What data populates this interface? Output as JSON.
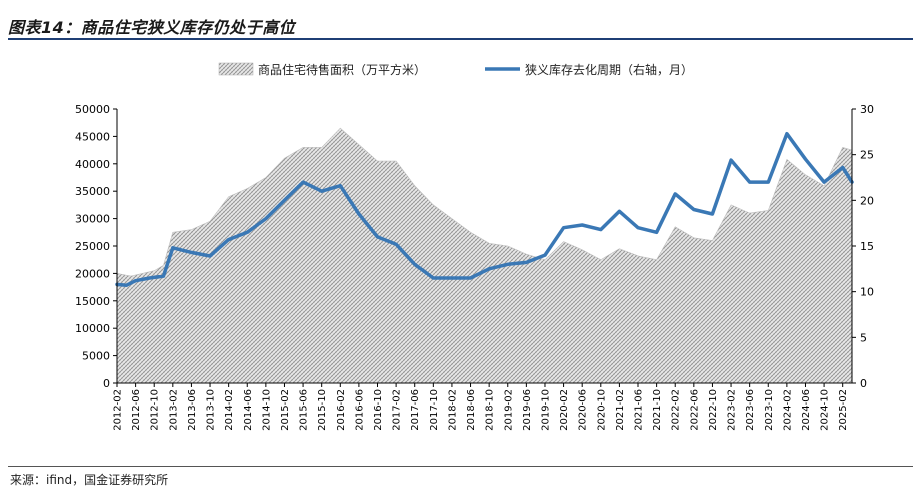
{
  "figure": {
    "title": "图表14：商品住宅狭义库存仍处于高位",
    "source": "来源：ifind，国金证券研究所"
  },
  "chart_data": {
    "type": "area+line",
    "legend_position": "top",
    "grid": false,
    "x_start": "2012-02",
    "x_end": "2025-04",
    "x_tick_labels": [
      "2012-02",
      "2012-06",
      "2012-10",
      "2013-02",
      "2013-06",
      "2013-10",
      "2014-02",
      "2014-06",
      "2014-10",
      "2015-02",
      "2015-06",
      "2015-10",
      "2016-02",
      "2016-06",
      "2016-10",
      "2017-02",
      "2017-06",
      "2017-10",
      "2018-02",
      "2018-06",
      "2018-10",
      "2019-02",
      "2019-06",
      "2019-10",
      "2020-02",
      "2020-06",
      "2020-10",
      "2021-02",
      "2021-06",
      "2021-10",
      "2022-02",
      "2022-06",
      "2022-10",
      "2023-02",
      "2023-06",
      "2023-10",
      "2024-02",
      "2024-06",
      "2024-10",
      "2025-02"
    ],
    "y_left": {
      "min": 0,
      "max": 50000,
      "ticks": [
        "0",
        "5000",
        "10000",
        "15000",
        "20000",
        "25000",
        "30000",
        "35000",
        "40000",
        "45000",
        "50000"
      ]
    },
    "y_right": {
      "min": 0,
      "max": 30,
      "ticks": [
        "0",
        "5",
        "10",
        "15",
        "20",
        "25",
        "30"
      ]
    },
    "series": [
      {
        "name": "商品住宅待售面积（万平方米）",
        "axis": "left",
        "style": "hatched-area",
        "color": "#9a9a9a",
        "points": [
          [
            "2012-02",
            20000
          ],
          [
            "2012-05",
            19500
          ],
          [
            "2012-10",
            20500
          ],
          [
            "2012-12",
            21500
          ],
          [
            "2013-02",
            27500
          ],
          [
            "2013-06",
            28000
          ],
          [
            "2013-10",
            29500
          ],
          [
            "2014-02",
            34000
          ],
          [
            "2014-06",
            35500
          ],
          [
            "2014-10",
            37500
          ],
          [
            "2015-02",
            41000
          ],
          [
            "2015-06",
            43000
          ],
          [
            "2015-10",
            43000
          ],
          [
            "2016-02",
            46500
          ],
          [
            "2016-06",
            43500
          ],
          [
            "2016-10",
            40500
          ],
          [
            "2017-02",
            40500
          ],
          [
            "2017-06",
            36000
          ],
          [
            "2017-10",
            32500
          ],
          [
            "2018-02",
            30000
          ],
          [
            "2018-06",
            27500
          ],
          [
            "2018-10",
            25500
          ],
          [
            "2019-02",
            25000
          ],
          [
            "2019-06",
            23500
          ],
          [
            "2019-10",
            22500
          ],
          [
            "2020-02",
            25800
          ],
          [
            "2020-06",
            24300
          ],
          [
            "2020-10",
            22500
          ],
          [
            "2021-02",
            24500
          ],
          [
            "2021-06",
            23200
          ],
          [
            "2021-10",
            22500
          ],
          [
            "2022-02",
            28500
          ],
          [
            "2022-06",
            26500
          ],
          [
            "2022-10",
            26000
          ],
          [
            "2023-02",
            32500
          ],
          [
            "2023-06",
            31000
          ],
          [
            "2023-10",
            31500
          ],
          [
            "2024-02",
            40800
          ],
          [
            "2024-06",
            38000
          ],
          [
            "2024-10",
            36000
          ],
          [
            "2025-02",
            43000
          ],
          [
            "2025-04",
            42500
          ]
        ]
      },
      {
        "name": "狭义库存去化周期（右轴，月）",
        "axis": "right",
        "style": "line",
        "color": "#3a78b5",
        "points": [
          [
            "2012-02",
            10.8
          ],
          [
            "2012-04",
            10.7
          ],
          [
            "2012-06",
            11.2
          ],
          [
            "2012-09",
            11.5
          ],
          [
            "2012-12",
            11.7
          ],
          [
            "2013-02",
            14.8
          ],
          [
            "2013-06",
            14.3
          ],
          [
            "2013-10",
            13.9
          ],
          [
            "2014-02",
            15.7
          ],
          [
            "2014-06",
            16.5
          ],
          [
            "2014-10",
            18.0
          ],
          [
            "2015-02",
            20.0
          ],
          [
            "2015-06",
            22.0
          ],
          [
            "2015-10",
            21.0
          ],
          [
            "2016-02",
            21.6
          ],
          [
            "2016-06",
            18.5
          ],
          [
            "2016-10",
            16.0
          ],
          [
            "2017-02",
            15.2
          ],
          [
            "2017-06",
            13.0
          ],
          [
            "2017-10",
            11.5
          ],
          [
            "2018-02",
            11.5
          ],
          [
            "2018-06",
            11.5
          ],
          [
            "2018-10",
            12.5
          ],
          [
            "2019-02",
            13.0
          ],
          [
            "2019-06",
            13.2
          ],
          [
            "2019-10",
            14.0
          ],
          [
            "2020-02",
            17.0
          ],
          [
            "2020-06",
            17.3
          ],
          [
            "2020-10",
            16.8
          ],
          [
            "2021-02",
            18.8
          ],
          [
            "2021-06",
            17.0
          ],
          [
            "2021-10",
            16.5
          ],
          [
            "2022-02",
            20.7
          ],
          [
            "2022-06",
            19.0
          ],
          [
            "2022-10",
            18.5
          ],
          [
            "2023-02",
            24.4
          ],
          [
            "2023-06",
            22.0
          ],
          [
            "2023-10",
            22.0
          ],
          [
            "2024-02",
            27.3
          ],
          [
            "2024-06",
            24.5
          ],
          [
            "2024-10",
            22.0
          ],
          [
            "2025-02",
            23.6
          ],
          [
            "2025-04",
            22.0
          ]
        ]
      }
    ]
  }
}
